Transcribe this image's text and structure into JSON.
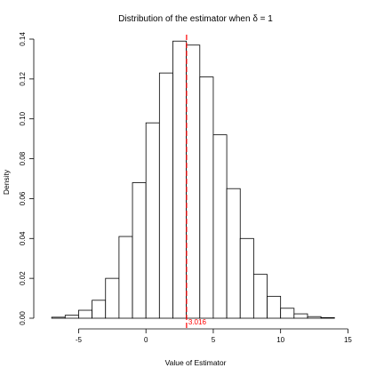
{
  "chart_data": {
    "type": "histogram",
    "title": "Distribution of the estimator when δ = 1",
    "xlabel": "Value of Estimator",
    "ylabel": "Density",
    "xlim": [
      -8,
      15.5
    ],
    "ylim": [
      0,
      0.14
    ],
    "x_ticks": [
      -5,
      0,
      5,
      10,
      15
    ],
    "y_ticks": [
      0.0,
      0.02,
      0.04,
      0.06,
      0.08,
      0.1,
      0.12,
      0.14
    ],
    "y_tick_labels": [
      "0.00",
      "0.02",
      "0.04",
      "0.06",
      "0.08",
      "0.10",
      "0.12",
      "0.14"
    ],
    "bin_width": 1,
    "bins": [
      {
        "x0": -7,
        "x1": -6,
        "density": 0.0005
      },
      {
        "x0": -6,
        "x1": -5,
        "density": 0.0015
      },
      {
        "x0": -5,
        "x1": -4,
        "density": 0.004
      },
      {
        "x0": -4,
        "x1": -3,
        "density": 0.009
      },
      {
        "x0": -3,
        "x1": -2,
        "density": 0.02
      },
      {
        "x0": -2,
        "x1": -1,
        "density": 0.041
      },
      {
        "x0": -1,
        "x1": 0,
        "density": 0.068
      },
      {
        "x0": 0,
        "x1": 1,
        "density": 0.098
      },
      {
        "x0": 1,
        "x1": 2,
        "density": 0.123
      },
      {
        "x0": 2,
        "x1": 3,
        "density": 0.139
      },
      {
        "x0": 3,
        "x1": 4,
        "density": 0.137
      },
      {
        "x0": 4,
        "x1": 5,
        "density": 0.121
      },
      {
        "x0": 5,
        "x1": 6,
        "density": 0.092
      },
      {
        "x0": 6,
        "x1": 7,
        "density": 0.065
      },
      {
        "x0": 7,
        "x1": 8,
        "density": 0.04
      },
      {
        "x0": 8,
        "x1": 9,
        "density": 0.022
      },
      {
        "x0": 9,
        "x1": 10,
        "density": 0.011
      },
      {
        "x0": 10,
        "x1": 11,
        "density": 0.005
      },
      {
        "x0": 11,
        "x1": 12,
        "density": 0.0022
      },
      {
        "x0": 12,
        "x1": 13,
        "density": 0.0008
      },
      {
        "x0": 13,
        "x1": 14,
        "density": 0.0003
      }
    ],
    "reference_line": {
      "x": 3.016,
      "label": "3.016",
      "color": "#ff0000",
      "style": "dashed"
    },
    "grid": false,
    "legend": "none"
  }
}
